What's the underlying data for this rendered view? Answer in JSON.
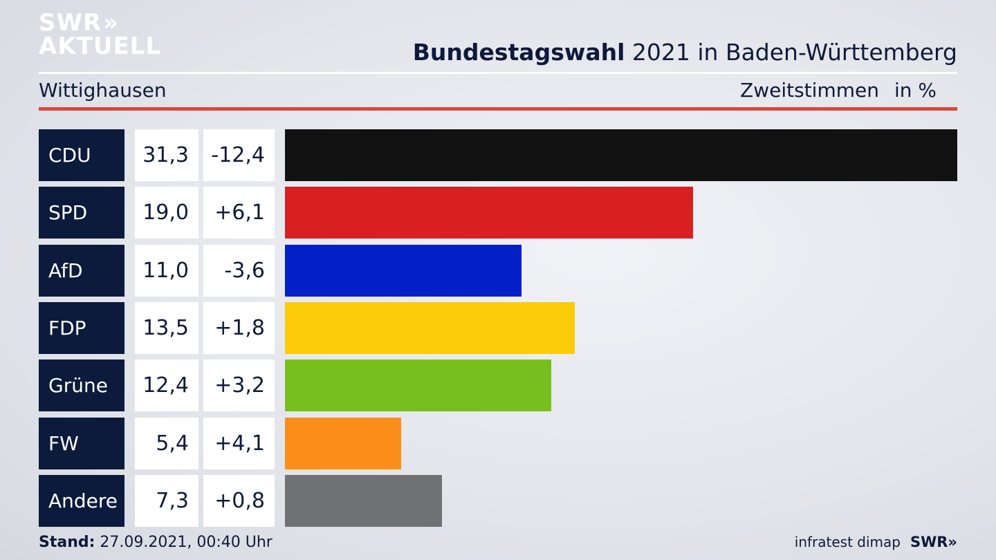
{
  "logo": {
    "line1": "SWR",
    "chevrons": "»",
    "line2": "AKTUELL"
  },
  "header": {
    "title_bold": "Bundestagswahl",
    "title_rest": " 2021 in Baden-Württemberg",
    "location": "Wittighausen",
    "measure": "Zweitstimmen",
    "unit": "in %"
  },
  "chart_data": {
    "type": "bar",
    "orientation": "horizontal",
    "categories": [
      "CDU",
      "SPD",
      "AfD",
      "FDP",
      "Grüne",
      "FW",
      "Andere"
    ],
    "values": [
      31.3,
      19.0,
      11.0,
      13.5,
      12.4,
      5.4,
      7.3
    ],
    "value_labels": [
      "31,3",
      "19,0",
      "11,0",
      "13,5",
      "12,4",
      "5,4",
      "7,3"
    ],
    "changes": [
      "-12,4",
      "+6,1",
      "-3,6",
      "+1,8",
      "+3,2",
      "+4,1",
      "+0,8"
    ],
    "colors": [
      "#121212",
      "#d7201f",
      "#0320c8",
      "#fdcb0a",
      "#78bf1e",
      "#fb8e19",
      "#707173"
    ],
    "xlim": [
      0,
      31.3
    ]
  },
  "footer": {
    "stand_label": "Stand:",
    "stand_value": " 27.09.2021, 00:40 Uhr",
    "source": "infratest dimap",
    "brand": "SWR»"
  }
}
